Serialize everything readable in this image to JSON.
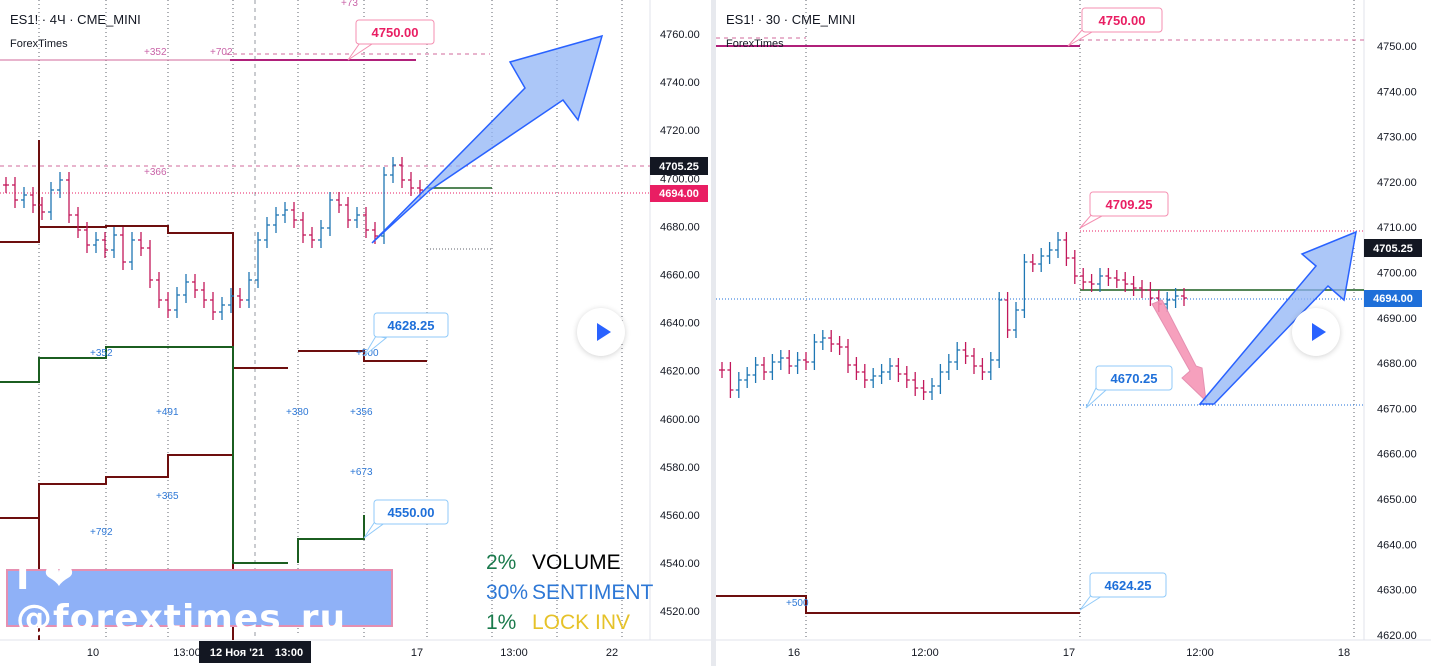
{
  "colors": {
    "pink": "#e91e63",
    "pink_light": "#f48fb1",
    "blue": "#2962ff",
    "blue_label": "#1e6fd9",
    "blue_light": "#90b4f5",
    "green": "#1b5e20",
    "maroon": "#6d0e0e",
    "candle_up": "#1f77b4",
    "candle_down": "#c2185b",
    "volume_color": "#1a7a4c",
    "sentiment_color": "#2e78d6",
    "lock_color": "#e6c229"
  },
  "left_chart": {
    "title": "ES1! · 4Ч · CME_MINI",
    "brand": "ForexTimes",
    "price_axis": [
      "4760.00",
      "4740.00",
      "4720.00",
      "4700.00",
      "4680.00",
      "4660.00",
      "4640.00",
      "4620.00",
      "4600.00",
      "4580.00",
      "4560.00",
      "4540.00",
      "4520.00"
    ],
    "time_axis": [
      "10",
      "13:00",
      "12 Ноя '21",
      "13:00",
      "17",
      "13:00",
      "22"
    ],
    "current_price_tag": "4705.25",
    "last_price_tag": "4694.00",
    "callouts": [
      "4750.00",
      "4628.25",
      "4550.00"
    ],
    "small_labels": [
      "+352",
      "+702",
      "+366",
      "+352",
      "+491",
      "+380",
      "+356",
      "+365",
      "+792",
      "+673",
      "+500",
      "+73"
    ]
  },
  "right_chart": {
    "title": "ES1! · 30 · CME_MINI",
    "brand": "ForexTimes",
    "price_axis": [
      "4750.00",
      "4740.00",
      "4730.00",
      "4720.00",
      "4710.00",
      "4700.00",
      "4690.00",
      "4680.00",
      "4670.00",
      "4660.00",
      "4650.00",
      "4640.00",
      "4630.00",
      "4620.00"
    ],
    "time_axis": [
      "16",
      "12:00",
      "17",
      "12:00",
      "18"
    ],
    "current_price_tag": "4705.25",
    "last_price_tag": "4694.00",
    "callouts": [
      "4750.00",
      "4709.25",
      "4670.25",
      "4624.25"
    ],
    "small_labels": [
      "+500"
    ]
  },
  "banner": "I ❤ @forextimes_ru",
  "stats": [
    {
      "pct": "2%",
      "label": "VOLUME"
    },
    {
      "pct": "30%",
      "label": "SENTIMENT"
    },
    {
      "pct": "1%",
      "label": "LOCK INV"
    }
  ]
}
